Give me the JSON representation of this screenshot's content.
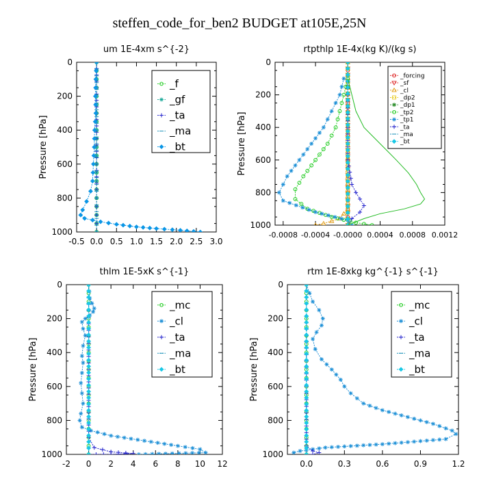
{
  "title": "steffen_code_for_ben2  BUDGET at105E,25N",
  "chart_data": [
    {
      "type": "line",
      "title": "um   1E-4xm s^{-2}",
      "ylabel": "Pressure [hPa]",
      "xlim": [
        -0.5,
        3.0
      ],
      "ylim": [
        1000,
        0
      ],
      "xticks": [
        "-0.5",
        "0.0",
        "0.5",
        "1.0",
        "1.5",
        "2.0",
        "2.5",
        "3.0"
      ],
      "yticks": [
        "0",
        "200",
        "400",
        "600",
        "800",
        "1000"
      ],
      "legend": "top-right",
      "series": [
        {
          "name": "_f",
          "color": "#22cc22",
          "marker": "circle",
          "x": [
            0.0,
            0.0,
            0.0,
            0.0,
            0.0,
            0.0,
            0.0,
            0.0,
            0.0,
            0.0,
            0.0
          ],
          "y": [
            0,
            100,
            200,
            300,
            400,
            500,
            600,
            700,
            800,
            900,
            1000
          ]
        },
        {
          "name": "_gf",
          "color": "#18a898",
          "marker": "star",
          "x": [
            0.0,
            0.0,
            0.0,
            0.0,
            0.0,
            0.0,
            0.0,
            0.0,
            0.0,
            0.0,
            0.0
          ],
          "y": [
            0,
            100,
            200,
            300,
            400,
            500,
            600,
            700,
            800,
            900,
            1000
          ]
        },
        {
          "name": "_ta",
          "color": "#2222cc",
          "marker": "plus",
          "x": [
            0.0,
            0.0,
            0.0,
            0.0,
            0.0,
            0.0,
            0.0,
            0.0,
            0.0
          ],
          "y": [
            0,
            150,
            300,
            450,
            600,
            750,
            850,
            950,
            1000
          ]
        },
        {
          "name": "_ma",
          "color": "#1890b8",
          "marker": "dash",
          "x": [
            0.0,
            0.0,
            0.0,
            0.0,
            0.0,
            0.0
          ],
          "y": [
            0,
            200,
            400,
            600,
            800,
            1000
          ]
        },
        {
          "name": "_bt",
          "color": "#0a96e6",
          "marker": "diamond",
          "x": [
            0.0,
            -0.02,
            -0.03,
            -0.02,
            -0.05,
            -0.06,
            -0.08,
            -0.1,
            -0.15,
            -0.25,
            -0.35,
            -0.4,
            -0.3,
            0.1,
            0.5,
            1.0,
            1.5,
            2.1,
            2.6
          ],
          "y": [
            0,
            100,
            200,
            300,
            400,
            500,
            600,
            700,
            760,
            820,
            870,
            900,
            920,
            940,
            955,
            970,
            980,
            990,
            1000
          ]
        }
      ]
    },
    {
      "type": "line",
      "title": "rtpthlp   1E-4x(kg K)/(kg s)",
      "ylabel": "Pressure [hPa]",
      "xlim": [
        -0.0009,
        0.0012
      ],
      "ylim": [
        1000,
        0
      ],
      "xticks": [
        "-0.0008",
        "-0.0004",
        "-0.0000",
        "0.0004",
        "0.0008",
        "0.0012"
      ],
      "yticks": [
        "0",
        "200",
        "400",
        "600",
        "800",
        "1000"
      ],
      "legend": "top-right",
      "series": [
        {
          "name": "_forcing",
          "color": "#dd2222",
          "marker": "circle",
          "x": [
            0.0,
            0.0,
            0.0,
            0.0,
            0.0,
            0.0,
            0.0,
            0.0,
            0.0,
            0.0,
            0.0,
            0.0,
            0.0,
            0.0,
            0.0,
            0.0,
            0.0,
            0.0,
            0.0,
            0.0,
            0.0
          ],
          "y": [
            0,
            50,
            100,
            150,
            200,
            250,
            300,
            350,
            400,
            450,
            500,
            550,
            600,
            650,
            700,
            750,
            800,
            850,
            900,
            950,
            1000
          ]
        },
        {
          "name": "_sf",
          "color": "#dd2222",
          "marker": "triangle-down",
          "x": [
            0.0,
            0.0
          ],
          "y": [
            0,
            1000
          ]
        },
        {
          "name": "_cl",
          "color": "#e09a10",
          "marker": "triangle-up",
          "x": [
            0.0,
            0.0,
            -0.0001,
            -0.0003,
            -0.0004
          ],
          "y": [
            0,
            900,
            960,
            990,
            1000
          ]
        },
        {
          "name": "_dp2",
          "color": "#e6c812",
          "marker": "square",
          "x": [
            0.0,
            0.0
          ],
          "y": [
            0,
            1000
          ]
        },
        {
          "name": "_dp1",
          "color": "#228822",
          "marker": "star",
          "x": [
            0.0,
            0.0
          ],
          "y": [
            0,
            1000
          ]
        },
        {
          "name": "_tp2",
          "color": "#22cc22",
          "marker": "circle",
          "x": [
            0.0,
            -5e-05,
            -0.0001,
            -0.00015,
            -0.00025,
            -0.0004,
            -0.00055,
            -0.00065,
            -0.00065,
            -0.0005,
            -0.0002,
            0.0001,
            0.0003
          ],
          "y": [
            100,
            200,
            300,
            400,
            500,
            600,
            700,
            780,
            840,
            900,
            950,
            985,
            1000
          ]
        },
        {
          "name": "_tp1",
          "color": "#1a8ed6",
          "marker": "star",
          "x": [
            -5e-05,
            -0.0001,
            -0.0002,
            -0.0003,
            -0.00045,
            -0.0006,
            -0.00075,
            -0.00085,
            -0.0008,
            -0.0004,
            0.0,
            5e-05
          ],
          "y": [
            100,
            200,
            300,
            400,
            500,
            600,
            700,
            800,
            850,
            920,
            970,
            1000
          ]
        },
        {
          "name": "_ta",
          "color": "#2222cc",
          "marker": "plus",
          "x": [
            0.0,
            0.0,
            5e-05,
            0.0001,
            0.00015,
            0.0002,
            0.00015,
            5e-05,
            0.0
          ],
          "y": [
            0,
            600,
            750,
            800,
            840,
            880,
            920,
            960,
            1000
          ]
        },
        {
          "name": "_ma",
          "color": "#1890b8",
          "marker": "dash",
          "x": [
            0.0,
            0.0
          ],
          "y": [
            0,
            1000
          ]
        },
        {
          "name": "_bt",
          "color": "#18c8e6",
          "marker": "diamond",
          "x": [
            0.0,
            0.0
          ],
          "y": [
            0,
            1000
          ]
        },
        {
          "name": "",
          "color": "#22bb22",
          "marker": "none",
          "x": [
            0.0,
            5e-05,
            0.0001,
            0.0002,
            0.0003,
            0.0004,
            0.0005,
            0.0006,
            0.00075,
            0.00085,
            0.0009,
            0.00095,
            0.0009,
            0.0007,
            0.0004,
            0.0002,
            0.0
          ],
          "y": [
            100,
            200,
            300,
            400,
            450,
            500,
            550,
            600,
            680,
            750,
            800,
            840,
            870,
            900,
            930,
            960,
            1000
          ]
        }
      ]
    },
    {
      "type": "line",
      "title": "thlm   1E-5xK s^{-1}",
      "ylabel": "Pressure [hPa]",
      "xlim": [
        -2,
        12
      ],
      "ylim": [
        1000,
        0
      ],
      "xticks": [
        "-2",
        "0",
        "2",
        "4",
        "6",
        "8",
        "10",
        "12"
      ],
      "yticks": [
        "0",
        "200",
        "400",
        "600",
        "800",
        "1000"
      ],
      "legend": "top-right",
      "series": [
        {
          "name": "_mc",
          "color": "#22cc22",
          "marker": "circle",
          "x": [
            0,
            0,
            0,
            0,
            0,
            0,
            0,
            0,
            0,
            0,
            0
          ],
          "y": [
            0,
            100,
            200,
            300,
            400,
            500,
            600,
            700,
            800,
            900,
            1000
          ]
        },
        {
          "name": "_cl",
          "color": "#1a8ed6",
          "marker": "star",
          "x": [
            0,
            0.1,
            0.3,
            0.5,
            0.4,
            0.1,
            -0.3,
            -0.6,
            -0.5,
            -0.3,
            -0.5,
            -0.6,
            -0.5,
            -0.6,
            -0.7,
            -0.6,
            -0.5,
            -0.7,
            -0.8,
            -0.6,
            0.2,
            2.0,
            5.0,
            8.0,
            10.0,
            10.5,
            4.5
          ],
          "y": [
            0,
            80,
            110,
            140,
            160,
            180,
            200,
            220,
            260,
            300,
            360,
            420,
            460,
            520,
            580,
            640,
            700,
            760,
            800,
            840,
            860,
            890,
            920,
            950,
            970,
            990,
            1000
          ]
        },
        {
          "name": "_ta",
          "color": "#2222cc",
          "marker": "plus",
          "x": [
            0,
            0,
            0,
            0.5,
            2.0,
            4.0,
            2.0,
            0
          ],
          "y": [
            0,
            500,
            900,
            960,
            985,
            995,
            1000,
            1000
          ]
        },
        {
          "name": "_ma",
          "color": "#1890b8",
          "marker": "dash",
          "x": [
            0,
            0
          ],
          "y": [
            0,
            1000
          ]
        },
        {
          "name": "_bt",
          "color": "#18c8e6",
          "marker": "diamond",
          "x": [
            0,
            0
          ],
          "y": [
            0,
            1000
          ]
        }
      ]
    },
    {
      "type": "line",
      "title": "rtm   1E-8xkg kg^{-1} s^{-1}",
      "ylabel": "Pressure [hPa]",
      "xlim": [
        -0.15,
        1.2
      ],
      "ylim": [
        1000,
        0
      ],
      "xticks": [
        "0.0",
        "0.3",
        "0.6",
        "0.9",
        "1.2"
      ],
      "yticks": [
        "0",
        "200",
        "400",
        "600",
        "800",
        "1000"
      ],
      "legend": "top-right",
      "series": [
        {
          "name": "_mc",
          "color": "#22cc22",
          "marker": "circle",
          "x": [
            0,
            0,
            0,
            0,
            0,
            0,
            0,
            0,
            0,
            0,
            0
          ],
          "y": [
            0,
            100,
            200,
            300,
            400,
            500,
            600,
            700,
            800,
            900,
            1000
          ]
        },
        {
          "name": "_cl",
          "color": "#1a8ed6",
          "marker": "star",
          "x": [
            0.0,
            0.05,
            0.1,
            0.13,
            0.12,
            0.08,
            0.05,
            0.07,
            0.12,
            0.2,
            0.27,
            0.3,
            0.35,
            0.45,
            0.6,
            0.8,
            1.0,
            1.15,
            1.18,
            1.1,
            0.6,
            0.15,
            -0.05,
            -0.1
          ],
          "y": [
            0,
            100,
            150,
            200,
            240,
            280,
            320,
            380,
            440,
            500,
            560,
            600,
            640,
            700,
            740,
            780,
            820,
            860,
            880,
            910,
            940,
            960,
            980,
            990
          ]
        },
        {
          "name": "_ta",
          "color": "#2222cc",
          "marker": "plus",
          "x": [
            0,
            0,
            0,
            0.05,
            0.1,
            0.05,
            0
          ],
          "y": [
            0,
            600,
            950,
            980,
            990,
            1000,
            1000
          ]
        },
        {
          "name": "_ma",
          "color": "#1890b8",
          "marker": "dash",
          "x": [
            0,
            0
          ],
          "y": [
            0,
            1000
          ]
        },
        {
          "name": "_bt",
          "color": "#18c8e6",
          "marker": "diamond",
          "x": [
            0,
            0
          ],
          "y": [
            0,
            1000
          ]
        }
      ]
    }
  ]
}
